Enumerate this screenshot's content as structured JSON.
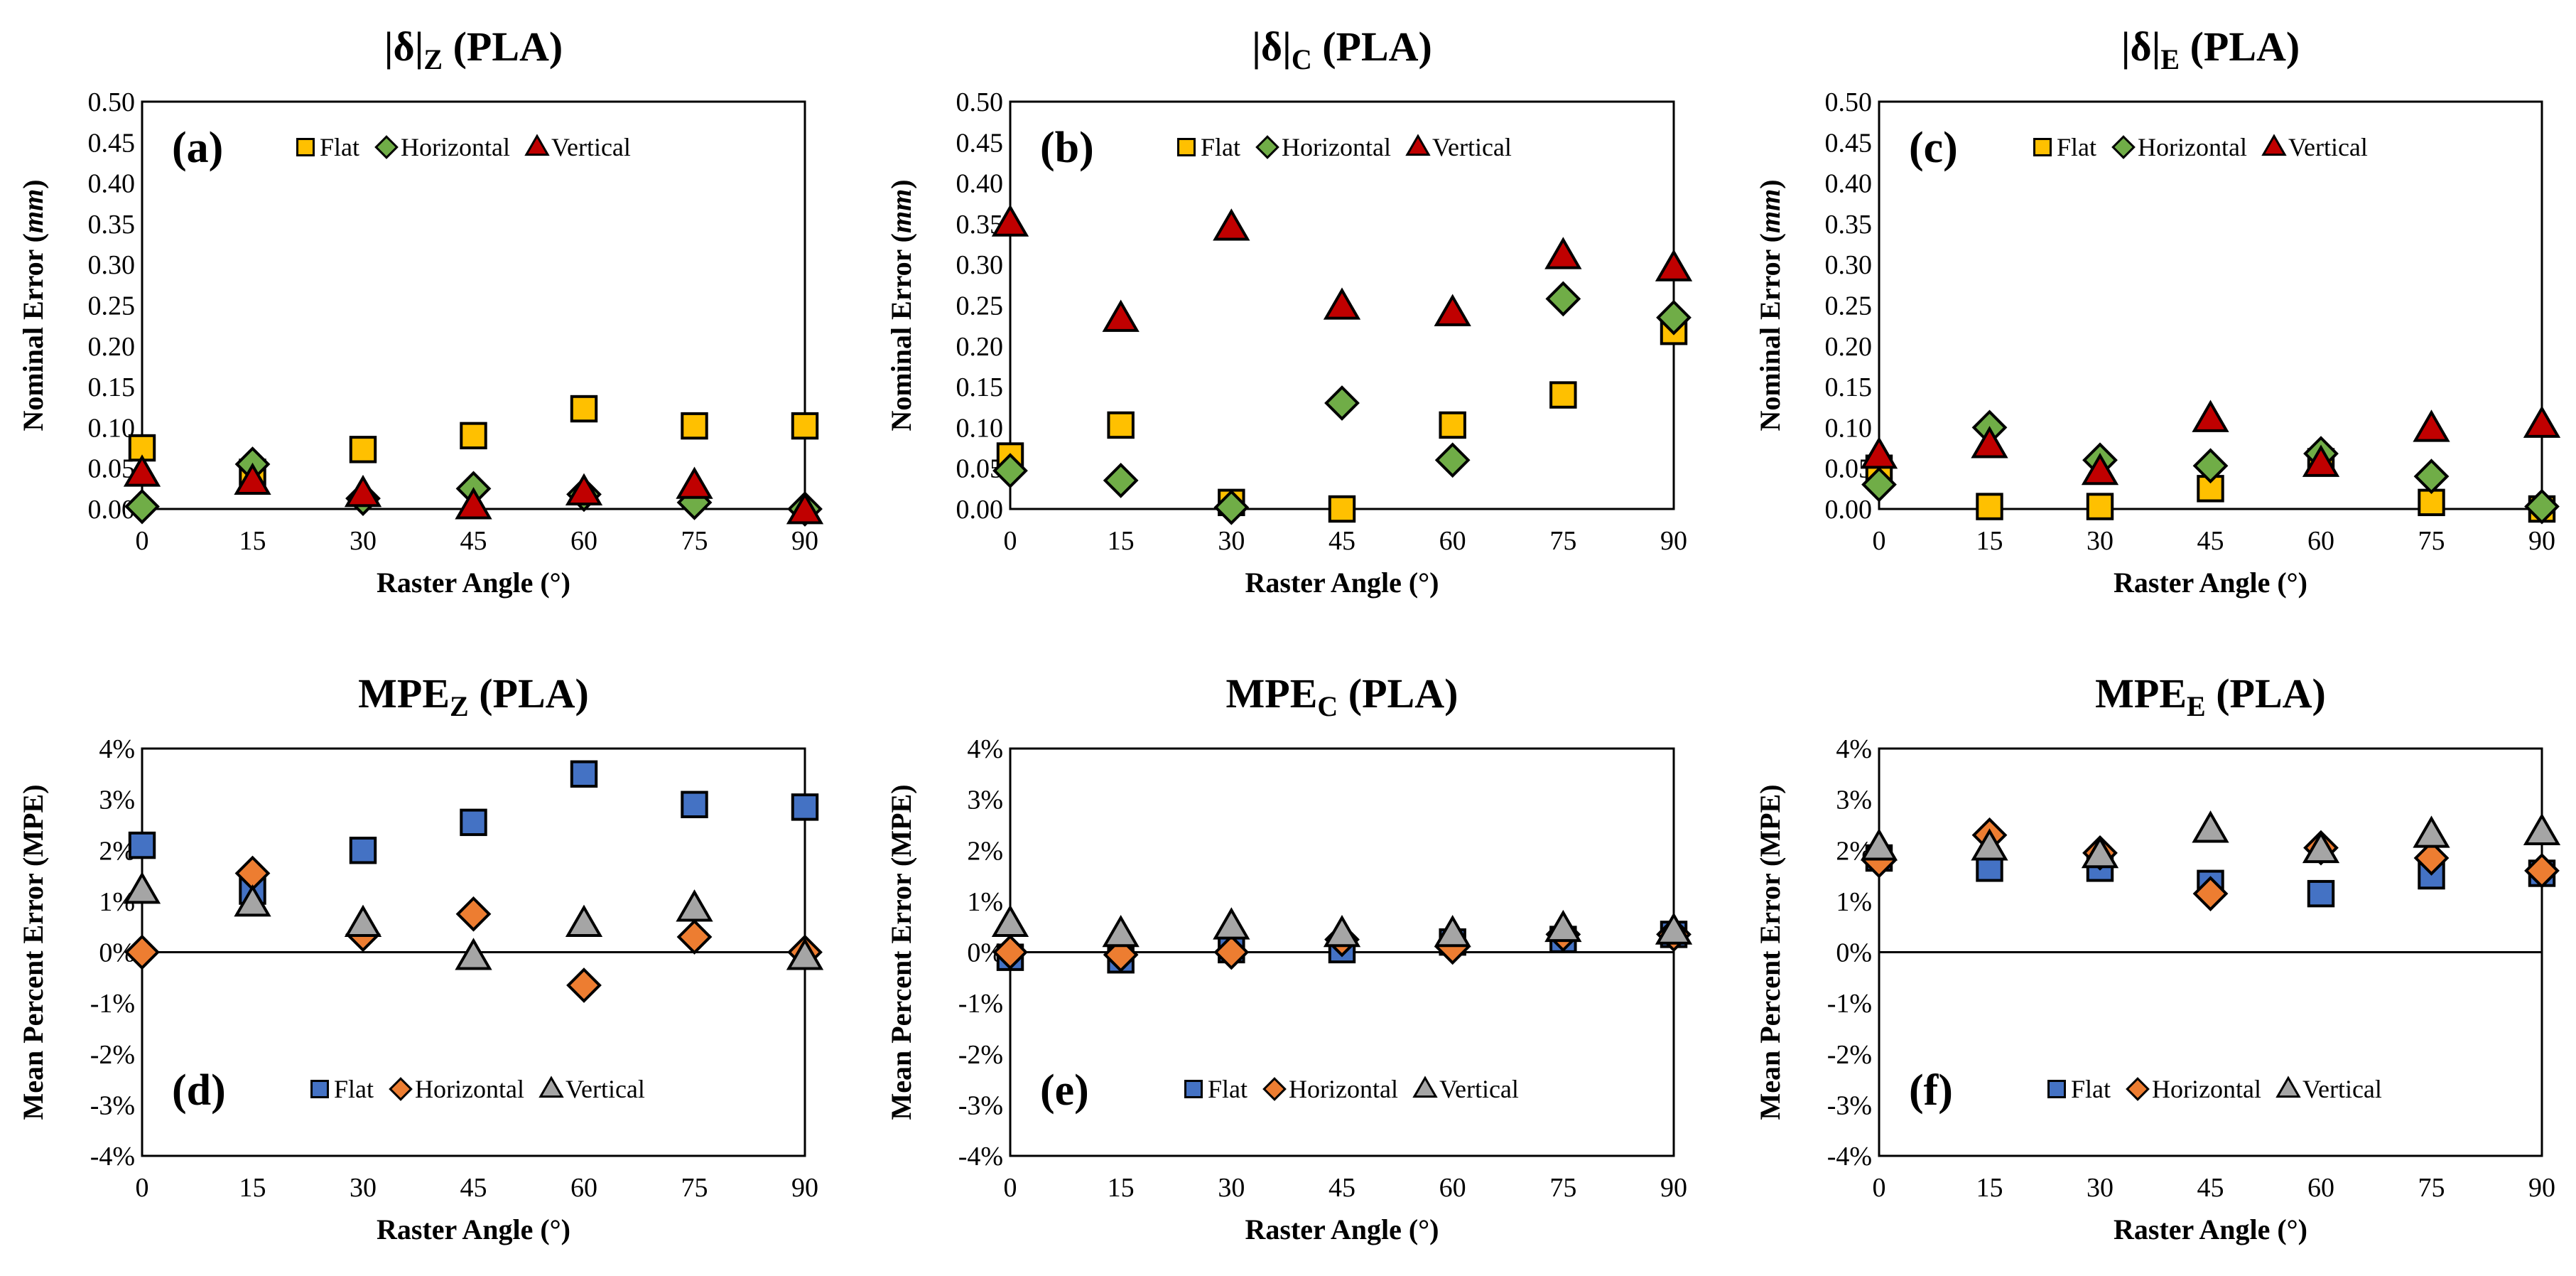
{
  "figure": {
    "x_label": "Raster Angle (°)",
    "series_names": [
      "Flat",
      "Horizontal",
      "Vertical"
    ],
    "colors": {
      "red_palette": {
        "Flat": "#FFC000",
        "Horizontal": "#70AD47",
        "Vertical": "#C00000"
      },
      "blue_palette": {
        "Flat": "#4472C4",
        "Horizontal": "#ED7D31",
        "Vertical": "#A5A5A5"
      }
    }
  },
  "chart_data": [
    {
      "type": "scatter",
      "panel_label": "(a)",
      "title_main": "|δ|",
      "title_sub": "Z",
      "title_tail": " (PLA)",
      "ylabel_pre": "Nominal  Error (",
      "ylabel_unit": "mm",
      "ylabel_post": ")",
      "xlabel": "Raster Angle (°)",
      "x": [
        0,
        15,
        30,
        45,
        60,
        75,
        90
      ],
      "xticks": [
        "0",
        "15",
        "30",
        "45",
        "60",
        "75",
        "90"
      ],
      "yticks": [
        "0.00",
        "0.05",
        "0.10",
        "0.15",
        "0.20",
        "0.25",
        "0.30",
        "0.35",
        "0.40",
        "0.45",
        "0.50"
      ],
      "ylim": [
        0,
        0.5
      ],
      "palette": "red_palette",
      "legend_position": "top",
      "series": [
        {
          "name": "Flat",
          "marker": "square",
          "values": [
            0.075,
            0.045,
            0.073,
            0.09,
            0.123,
            0.102,
            0.102
          ]
        },
        {
          "name": "Horizontal",
          "marker": "diamond",
          "values": [
            0.003,
            0.055,
            0.013,
            0.025,
            0.018,
            0.008,
            0.0
          ]
        },
        {
          "name": "Vertical",
          "marker": "triangle",
          "values": [
            0.043,
            0.033,
            0.018,
            0.003,
            0.02,
            0.028,
            -0.003
          ]
        }
      ]
    },
    {
      "type": "scatter",
      "panel_label": "(b)",
      "title_main": "|δ|",
      "title_sub": "C",
      "title_tail": "  (PLA)",
      "ylabel_pre": "Nominal Error (",
      "ylabel_unit": "mm",
      "ylabel_post": ")",
      "xlabel": "Raster Angle (°)",
      "x": [
        0,
        15,
        30,
        45,
        60,
        75,
        90
      ],
      "xticks": [
        "0",
        "15",
        "30",
        "45",
        "60",
        "75",
        "90"
      ],
      "yticks": [
        "0.00",
        "0.05",
        "0.10",
        "0.15",
        "0.20",
        "0.25",
        "0.30",
        "0.35",
        "0.40",
        "0.45",
        "0.50"
      ],
      "ylim": [
        0,
        0.5
      ],
      "palette": "red_palette",
      "legend_position": "top",
      "series": [
        {
          "name": "Flat",
          "marker": "square",
          "values": [
            0.065,
            0.103,
            0.008,
            0.0,
            0.103,
            0.14,
            0.218
          ]
        },
        {
          "name": "Horizontal",
          "marker": "diamond",
          "values": [
            0.047,
            0.035,
            0.002,
            0.13,
            0.06,
            0.258,
            0.235
          ]
        },
        {
          "name": "Vertical",
          "marker": "triangle",
          "values": [
            0.35,
            0.233,
            0.345,
            0.248,
            0.24,
            0.31,
            0.295
          ]
        }
      ]
    },
    {
      "type": "scatter",
      "panel_label": "(c)",
      "title_main": "|δ|",
      "title_sub": "E",
      "title_tail": "  (PLA)",
      "ylabel_pre": "Nominal Error (",
      "ylabel_unit": "mm",
      "ylabel_post": ")",
      "xlabel": "Raster Angle (°)",
      "x": [
        0,
        15,
        30,
        45,
        60,
        75,
        90
      ],
      "xticks": [
        "0",
        "15",
        "30",
        "45",
        "60",
        "75",
        "90"
      ],
      "yticks": [
        "0.00",
        "0.05",
        "0.10",
        "0.15",
        "0.20",
        "0.25",
        "0.30",
        "0.35",
        "0.40",
        "0.45",
        "0.50"
      ],
      "ylim": [
        0,
        0.5
      ],
      "palette": "red_palette",
      "legend_position": "top",
      "series": [
        {
          "name": "Flat",
          "marker": "square",
          "values": [
            0.05,
            0.003,
            0.003,
            0.025,
            0.058,
            0.008,
            0.0
          ]
        },
        {
          "name": "Horizontal",
          "marker": "diamond",
          "values": [
            0.03,
            0.1,
            0.06,
            0.053,
            0.068,
            0.04,
            0.003
          ]
        },
        {
          "name": "Vertical",
          "marker": "triangle",
          "values": [
            0.065,
            0.078,
            0.045,
            0.11,
            0.055,
            0.098,
            0.103
          ]
        }
      ]
    },
    {
      "type": "scatter",
      "panel_label": "(d)",
      "title_main": "MPE",
      "title_sub": "Z",
      "title_tail": " (PLA)",
      "ylabel_pre": "Mean Percent Error (MPE)",
      "ylabel_unit": "",
      "ylabel_post": "",
      "xlabel": "Raster Angle (°)",
      "x": [
        0,
        15,
        30,
        45,
        60,
        75,
        90
      ],
      "xticks": [
        "0",
        "15",
        "30",
        "45",
        "60",
        "75",
        "90"
      ],
      "yticks": [
        "-4%",
        "-3%",
        "-2%",
        "-1%",
        "0%",
        "1%",
        "2%",
        "3%",
        "4%"
      ],
      "ylim": [
        -4,
        4
      ],
      "palette": "blue_palette",
      "legend_position": "bottom",
      "series": [
        {
          "name": "Flat",
          "marker": "square",
          "values": [
            2.1,
            1.2,
            2.0,
            2.55,
            3.5,
            2.9,
            2.85
          ]
        },
        {
          "name": "Horizontal",
          "marker": "diamond",
          "values": [
            0.0,
            1.55,
            0.35,
            0.75,
            -0.65,
            0.3,
            0.0
          ]
        },
        {
          "name": "Vertical",
          "marker": "triangle",
          "values": [
            1.2,
            0.95,
            0.55,
            -0.1,
            0.55,
            0.85,
            -0.1
          ]
        }
      ]
    },
    {
      "type": "scatter",
      "panel_label": "(e)",
      "title_main": "MPE",
      "title_sub": "C",
      "title_tail": " (PLA)",
      "ylabel_pre": "Mean Percent Error (MPE)",
      "ylabel_unit": "",
      "ylabel_post": "",
      "xlabel": "Raster Angle (°)",
      "x": [
        0,
        15,
        30,
        45,
        60,
        75,
        90
      ],
      "xticks": [
        "0",
        "15",
        "30",
        "45",
        "60",
        "75",
        "90"
      ],
      "yticks": [
        "-4%",
        "-3%",
        "-2%",
        "-1%",
        "0%",
        "1%",
        "2%",
        "3%",
        "4%"
      ],
      "ylim": [
        -4,
        4
      ],
      "palette": "blue_palette",
      "legend_position": "bottom",
      "series": [
        {
          "name": "Flat",
          "marker": "square",
          "values": [
            -0.1,
            -0.15,
            0.05,
            0.05,
            0.2,
            0.25,
            0.35
          ]
        },
        {
          "name": "Horizontal",
          "marker": "diamond",
          "values": [
            0.0,
            -0.05,
            0.0,
            0.25,
            0.1,
            0.35,
            0.35
          ]
        },
        {
          "name": "Vertical",
          "marker": "triangle",
          "values": [
            0.55,
            0.35,
            0.5,
            0.35,
            0.35,
            0.45,
            0.4
          ]
        }
      ]
    },
    {
      "type": "scatter",
      "panel_label": "(f)",
      "title_main": "MPE",
      "title_sub": "E",
      "title_tail": " (PLA)",
      "ylabel_pre": "Mean Percent Error (MPE)",
      "ylabel_unit": "",
      "ylabel_post": "",
      "xlabel": "Raster Angle (°)",
      "x": [
        0,
        15,
        30,
        45,
        60,
        75,
        90
      ],
      "xticks": [
        "0",
        "15",
        "30",
        "45",
        "60",
        "75",
        "90"
      ],
      "yticks": [
        "-4%",
        "-3%",
        "-2%",
        "-1%",
        "0%",
        "1%",
        "2%",
        "3%",
        "4%"
      ],
      "ylim": [
        -4,
        4
      ],
      "palette": "blue_palette",
      "legend_position": "bottom",
      "series": [
        {
          "name": "Flat",
          "marker": "square",
          "values": [
            1.85,
            1.65,
            1.65,
            1.35,
            1.15,
            1.5,
            1.55
          ]
        },
        {
          "name": "Horizontal",
          "marker": "diamond",
          "values": [
            1.8,
            2.3,
            1.95,
            1.15,
            2.05,
            1.85,
            1.6
          ]
        },
        {
          "name": "Vertical",
          "marker": "triangle",
          "values": [
            2.05,
            2.05,
            1.9,
            2.4,
            2.0,
            2.3,
            2.35
          ]
        }
      ]
    }
  ]
}
